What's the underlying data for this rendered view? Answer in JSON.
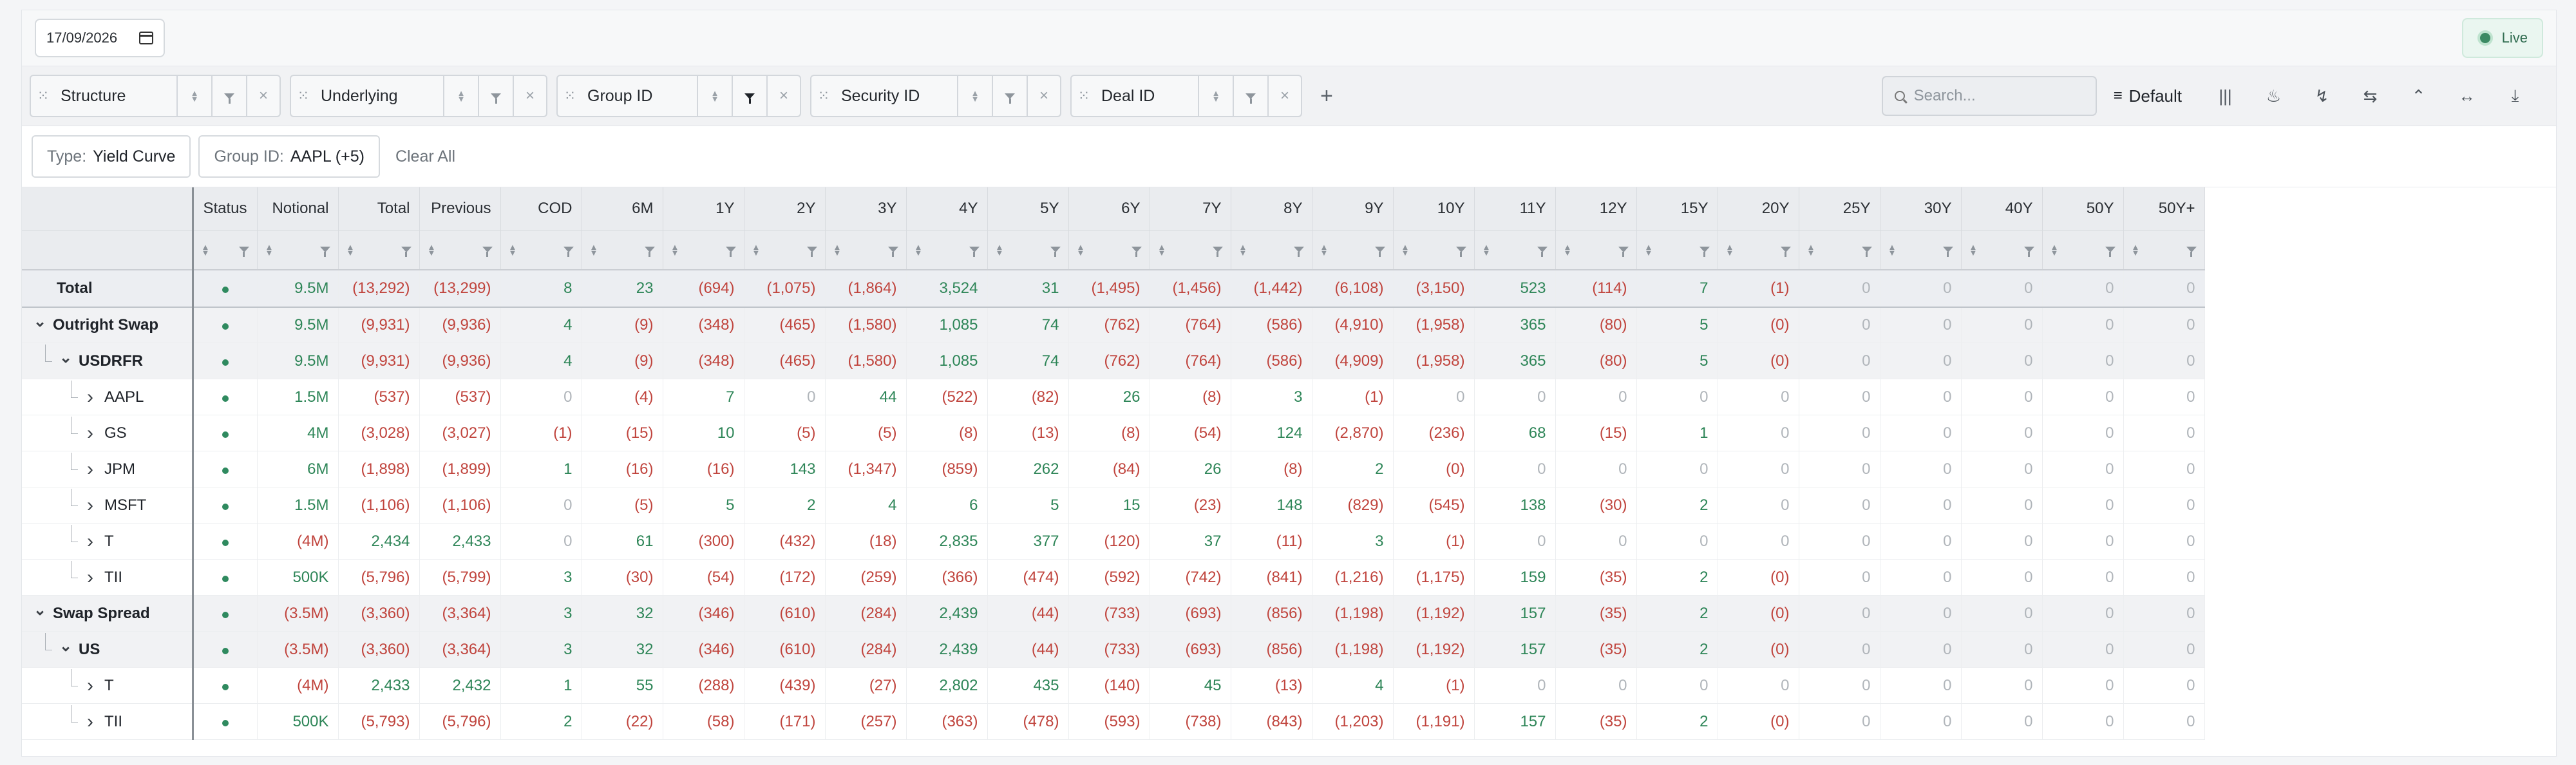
{
  "topbar": {
    "date_value": "17/09/2026",
    "live_label": "Live"
  },
  "groupbar": {
    "chips": [
      {
        "label": "Structure",
        "filter_active": false
      },
      {
        "label": "Underlying",
        "filter_active": false
      },
      {
        "label": "Group ID",
        "filter_active": true
      },
      {
        "label": "Security ID",
        "filter_active": false
      },
      {
        "label": "Deal ID",
        "filter_active": false
      }
    ],
    "add_label": "+",
    "search_placeholder": "Search...",
    "view_label": "Default",
    "tool_icons": [
      "columns-icon",
      "flame-icon",
      "bolt-icon",
      "swap-icon",
      "collapse-up-icon",
      "fit-width-icon",
      "download-icon"
    ]
  },
  "filterbar": {
    "filters": [
      {
        "key": "Type:",
        "value": "Yield Curve"
      },
      {
        "key": "Group ID:",
        "value": "AAPL (+5)"
      }
    ],
    "clear_all": "Clear All"
  },
  "table": {
    "columns": [
      "Status",
      "Notional",
      "Total",
      "Previous",
      "COD",
      "6M",
      "1Y",
      "2Y",
      "3Y",
      "4Y",
      "5Y",
      "6Y",
      "7Y",
      "8Y",
      "9Y",
      "10Y",
      "11Y",
      "12Y",
      "15Y",
      "20Y",
      "25Y",
      "30Y",
      "40Y",
      "50Y",
      "50Y+"
    ],
    "rows": [
      {
        "label": "Total",
        "level": 0,
        "kind": "total",
        "values": [
          "9.5M",
          "(13,292)",
          "(13,299)",
          "8",
          "23",
          "(694)",
          "(1,075)",
          "(1,864)",
          "3,524",
          "31",
          "(1,495)",
          "(1,456)",
          "(1,442)",
          "(6,108)",
          "(3,150)",
          "523",
          "(114)",
          "7",
          "(1)",
          "0",
          "0",
          "0",
          "0",
          "0"
        ]
      },
      {
        "label": "Outright Swap",
        "level": 1,
        "kind": "group",
        "values": [
          "9.5M",
          "(9,931)",
          "(9,936)",
          "4",
          "(9)",
          "(348)",
          "(465)",
          "(1,580)",
          "1,085",
          "74",
          "(762)",
          "(764)",
          "(586)",
          "(4,910)",
          "(1,958)",
          "365",
          "(80)",
          "5",
          "(0)",
          "0",
          "0",
          "0",
          "0",
          "0"
        ]
      },
      {
        "label": "USDRFR",
        "level": 2,
        "kind": "group",
        "values": [
          "9.5M",
          "(9,931)",
          "(9,936)",
          "4",
          "(9)",
          "(348)",
          "(465)",
          "(1,580)",
          "1,085",
          "74",
          "(762)",
          "(764)",
          "(586)",
          "(4,909)",
          "(1,958)",
          "365",
          "(80)",
          "5",
          "(0)",
          "0",
          "0",
          "0",
          "0",
          "0"
        ]
      },
      {
        "label": "AAPL",
        "level": 3,
        "kind": "leaf",
        "values": [
          "1.5M",
          "(537)",
          "(537)",
          "0",
          "(4)",
          "7",
          "0",
          "44",
          "(522)",
          "(82)",
          "26",
          "(8)",
          "3",
          "(1)",
          "0",
          "0",
          "0",
          "0",
          "0",
          "0",
          "0",
          "0",
          "0",
          "0"
        ]
      },
      {
        "label": "GS",
        "level": 3,
        "kind": "leaf",
        "values": [
          "4M",
          "(3,028)",
          "(3,027)",
          "(1)",
          "(15)",
          "10",
          "(5)",
          "(5)",
          "(8)",
          "(13)",
          "(8)",
          "(54)",
          "124",
          "(2,870)",
          "(236)",
          "68",
          "(15)",
          "1",
          "0",
          "0",
          "0",
          "0",
          "0",
          "0"
        ]
      },
      {
        "label": "JPM",
        "level": 3,
        "kind": "leaf",
        "values": [
          "6M",
          "(1,898)",
          "(1,899)",
          "1",
          "(16)",
          "(16)",
          "143",
          "(1,347)",
          "(859)",
          "262",
          "(84)",
          "26",
          "(8)",
          "2",
          "(0)",
          "0",
          "0",
          "0",
          "0",
          "0",
          "0",
          "0",
          "0",
          "0"
        ]
      },
      {
        "label": "MSFT",
        "level": 3,
        "kind": "leaf",
        "values": [
          "1.5M",
          "(1,106)",
          "(1,106)",
          "0",
          "(5)",
          "5",
          "2",
          "4",
          "6",
          "5",
          "15",
          "(23)",
          "148",
          "(829)",
          "(545)",
          "138",
          "(30)",
          "2",
          "0",
          "0",
          "0",
          "0",
          "0",
          "0"
        ]
      },
      {
        "label": "T",
        "level": 3,
        "kind": "leaf",
        "values": [
          "(4M)",
          "2,434",
          "2,433",
          "0",
          "61",
          "(300)",
          "(432)",
          "(18)",
          "2,835",
          "377",
          "(120)",
          "37",
          "(11)",
          "3",
          "(1)",
          "0",
          "0",
          "0",
          "0",
          "0",
          "0",
          "0",
          "0",
          "0"
        ]
      },
      {
        "label": "TII",
        "level": 3,
        "kind": "leaf",
        "values": [
          "500K",
          "(5,796)",
          "(5,799)",
          "3",
          "(30)",
          "(54)",
          "(172)",
          "(259)",
          "(366)",
          "(474)",
          "(592)",
          "(742)",
          "(841)",
          "(1,216)",
          "(1,175)",
          "159",
          "(35)",
          "2",
          "(0)",
          "0",
          "0",
          "0",
          "0",
          "0"
        ]
      },
      {
        "label": "Swap Spread",
        "level": 1,
        "kind": "group",
        "values": [
          "(3.5M)",
          "(3,360)",
          "(3,364)",
          "3",
          "32",
          "(346)",
          "(610)",
          "(284)",
          "2,439",
          "(44)",
          "(733)",
          "(693)",
          "(856)",
          "(1,198)",
          "(1,192)",
          "157",
          "(35)",
          "2",
          "(0)",
          "0",
          "0",
          "0",
          "0",
          "0"
        ]
      },
      {
        "label": "US",
        "level": 2,
        "kind": "group",
        "values": [
          "(3.5M)",
          "(3,360)",
          "(3,364)",
          "3",
          "32",
          "(346)",
          "(610)",
          "(284)",
          "2,439",
          "(44)",
          "(733)",
          "(693)",
          "(856)",
          "(1,198)",
          "(1,192)",
          "157",
          "(35)",
          "2",
          "(0)",
          "0",
          "0",
          "0",
          "0",
          "0"
        ]
      },
      {
        "label": "T",
        "level": 3,
        "kind": "leaf",
        "values": [
          "(4M)",
          "2,433",
          "2,432",
          "1",
          "55",
          "(288)",
          "(439)",
          "(27)",
          "2,802",
          "435",
          "(140)",
          "45",
          "(13)",
          "4",
          "(1)",
          "0",
          "0",
          "0",
          "0",
          "0",
          "0",
          "0",
          "0",
          "0"
        ]
      },
      {
        "label": "TII",
        "level": 3,
        "kind": "leaf",
        "values": [
          "500K",
          "(5,793)",
          "(5,796)",
          "2",
          "(22)",
          "(58)",
          "(171)",
          "(257)",
          "(363)",
          "(478)",
          "(593)",
          "(738)",
          "(843)",
          "(1,203)",
          "(1,191)",
          "157",
          "(35)",
          "2",
          "(0)",
          "0",
          "0",
          "0",
          "0",
          "0"
        ]
      }
    ]
  },
  "colors": {
    "positive": "#2d8557",
    "negative": "#c0443d",
    "zero": "#b0b5ba",
    "status": "#2f8a5f"
  }
}
